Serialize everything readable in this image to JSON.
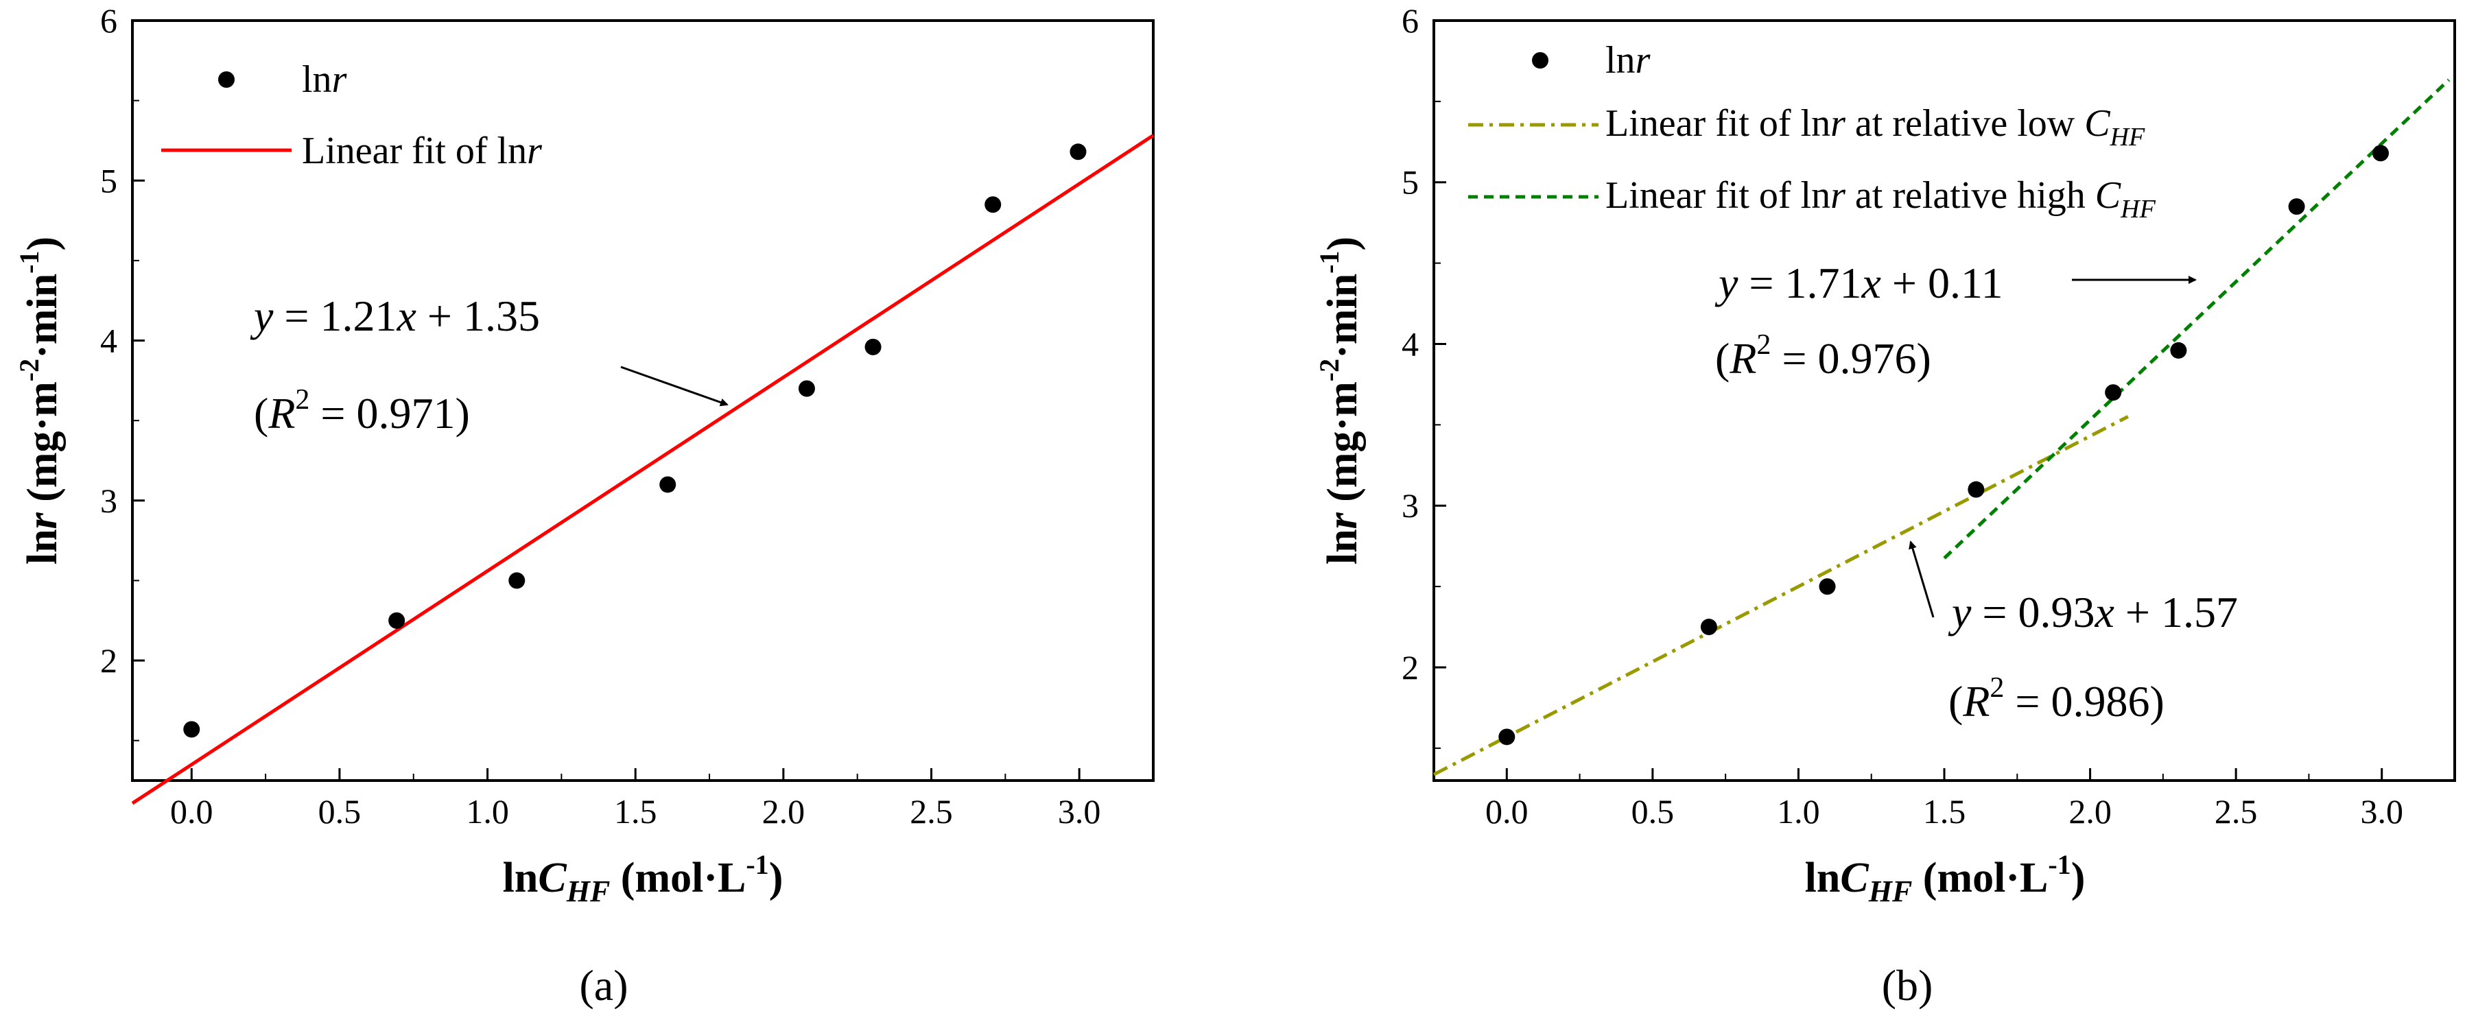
{
  "colors": {
    "points": "#000000",
    "fit_a": "#ff0000",
    "fit_low": "#999900",
    "fit_high": "#008000",
    "axis": "#000000",
    "arrow": "#000000"
  },
  "chart_data": [
    {
      "type": "scatter",
      "panel_label": "(a)",
      "xlabel": "lnC_HF (mol·L⁻¹)",
      "xlabel_parts": [
        "ln",
        "C",
        "HF",
        " (mol·L",
        "-1",
        ")"
      ],
      "ylabel": "lnr (mg·m⁻²·min⁻¹)",
      "ylabel_parts": [
        "ln",
        "r",
        " (mg·m",
        "-2",
        "·min",
        "-1",
        ")"
      ],
      "xlim": [
        -0.2,
        3.25
      ],
      "ylim": [
        1.25,
        6
      ],
      "xticks": [
        0.0,
        0.5,
        1.0,
        1.5,
        2.0,
        2.5,
        3.0
      ],
      "xtick_labels": [
        "0.0",
        "0.5",
        "1.0",
        "1.5",
        "2.0",
        "2.5",
        "3.0"
      ],
      "yticks": [
        2,
        3,
        4,
        5,
        6
      ],
      "ytick_labels": [
        "2",
        "3",
        "4",
        "5",
        "6"
      ],
      "series": [
        {
          "name": "lnr",
          "kind": "scatter",
          "x": [
            0.0,
            0.693,
            1.099,
            1.609,
            2.079,
            2.303,
            2.708,
            2.996
          ],
          "y": [
            1.57,
            2.25,
            2.5,
            3.1,
            3.7,
            3.96,
            4.85,
            5.18
          ]
        },
        {
          "name": "Linear fit of lnr",
          "kind": "line",
          "style": "solid",
          "slope": 1.21,
          "intercept": 1.35,
          "x_range": [
            -0.2,
            3.25
          ]
        }
      ],
      "legend": {
        "placement": "top-left",
        "entries": [
          {
            "prefix": "ln",
            "italic": "r",
            "suffix": "",
            "sub": ""
          },
          {
            "prefix": "Linear fit of ln",
            "italic": "r",
            "suffix": "",
            "sub": ""
          }
        ]
      },
      "annotations": [
        {
          "equation": {
            "y": "y",
            "eq": " = 1.21",
            "x": "x",
            "rest": " + 1.35"
          },
          "r2": {
            "open": "(",
            "R": "R",
            "sup": "2",
            "rest": " = 0.971)"
          },
          "arrow_target": [
            1.84,
            3.58
          ]
        }
      ]
    },
    {
      "type": "scatter",
      "panel_label": "(b)",
      "xlabel": "lnC_HF (mol·L⁻¹)",
      "xlabel_parts": [
        "ln",
        "C",
        "HF",
        " (mol·L",
        "-1",
        ")"
      ],
      "ylabel": "lnr (mg·m⁻²·min⁻¹)",
      "ylabel_parts": [
        "ln",
        "r",
        " (mg·m",
        "-2",
        "·min",
        "-1",
        ")"
      ],
      "xlim": [
        -0.25,
        3.25
      ],
      "ylim": [
        1.3,
        6
      ],
      "xticks": [
        0.0,
        0.5,
        1.0,
        1.5,
        2.0,
        2.5,
        3.0
      ],
      "xtick_labels": [
        "0.0",
        "0.5",
        "1.0",
        "1.5",
        "2.0",
        "2.5",
        "3.0"
      ],
      "yticks": [
        2,
        3,
        4,
        5,
        6
      ],
      "ytick_labels": [
        "2",
        "3",
        "4",
        "5",
        "6"
      ],
      "series": [
        {
          "name": "lnr",
          "kind": "scatter",
          "x": [
            0.0,
            0.693,
            1.099,
            1.609,
            2.079,
            2.303,
            2.708,
            2.996
          ],
          "y": [
            1.57,
            2.25,
            2.5,
            3.1,
            3.7,
            3.96,
            4.85,
            5.18
          ]
        },
        {
          "name": "Linear fit of lnr at relative low C_HF",
          "kind": "line",
          "style": "dashdot",
          "slope": 0.93,
          "intercept": 1.57,
          "x_range": [
            -0.25,
            2.13
          ]
        },
        {
          "name": "Linear fit of lnr at relative high C_HF",
          "kind": "line",
          "style": "dashed",
          "slope": 1.71,
          "intercept": 0.11,
          "x_range": [
            1.5,
            3.23
          ]
        }
      ],
      "legend": {
        "placement": "top-left",
        "entries": [
          {
            "prefix": "ln",
            "italic": "r",
            "suffix": "",
            "sub": ""
          },
          {
            "prefix": "Linear fit of ln",
            "italic": "r",
            "suffix": " at relative low ",
            "subbase": "C",
            "sub": "HF"
          },
          {
            "prefix": "Linear fit of ln",
            "italic": "r",
            "suffix": " at relative high ",
            "subbase": "C",
            "sub": "HF"
          }
        ]
      },
      "annotations": [
        {
          "equation": {
            "y": "y",
            "eq": " = 1.71",
            "x": "x",
            "rest": " + 0.11"
          },
          "r2": {
            "open": "(",
            "R": "R",
            "sup": "2",
            "rest": " = 0.976)"
          },
          "arrow_target": [
            2.46,
            4.4
          ]
        },
        {
          "equation": {
            "y": "y",
            "eq": " = 0.93",
            "x": "x",
            "rest": " + 1.57"
          },
          "r2": {
            "open": "(",
            "R": "R",
            "sup": "2",
            "rest": " = 0.986)"
          },
          "arrow_target": [
            1.37,
            2.75
          ]
        }
      ]
    }
  ]
}
